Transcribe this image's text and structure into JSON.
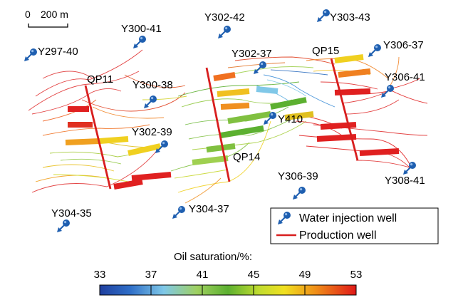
{
  "scale_bar": {
    "zero_label": "0",
    "length_label": "200 m"
  },
  "colors": {
    "production_well": "#d81e1e",
    "water_injection_well": "#1f5fb0",
    "colormap": [
      "#1f3f9f",
      "#2f7fd0",
      "#7fc8e8",
      "#86c440",
      "#5cb030",
      "#d8e020",
      "#f0c010",
      "#f07818",
      "#e02020"
    ]
  },
  "water_injection_wells": [
    {
      "id": "Y297-40"
    },
    {
      "id": "Y300-41"
    },
    {
      "id": "Y302-42"
    },
    {
      "id": "Y303-43"
    },
    {
      "id": "Y306-37"
    },
    {
      "id": "Y302-37"
    },
    {
      "id": "Y306-41"
    },
    {
      "id": "Y300-38"
    },
    {
      "id": "Y410"
    },
    {
      "id": "Y302-39"
    },
    {
      "id": "Y306-39"
    },
    {
      "id": "Y308-41"
    },
    {
      "id": "Y304-35"
    },
    {
      "id": "Y304-37"
    }
  ],
  "production_wells": [
    {
      "id": "QP11"
    },
    {
      "id": "QP14"
    },
    {
      "id": "QP15"
    }
  ],
  "legend": {
    "water_injection_label": "Water injection well",
    "production_label": "Production well"
  },
  "colorbar": {
    "title": "Oil saturation/%:",
    "ticks": [
      "33",
      "37",
      "41",
      "45",
      "49",
      "53"
    ],
    "min": 33,
    "max": 53
  }
}
